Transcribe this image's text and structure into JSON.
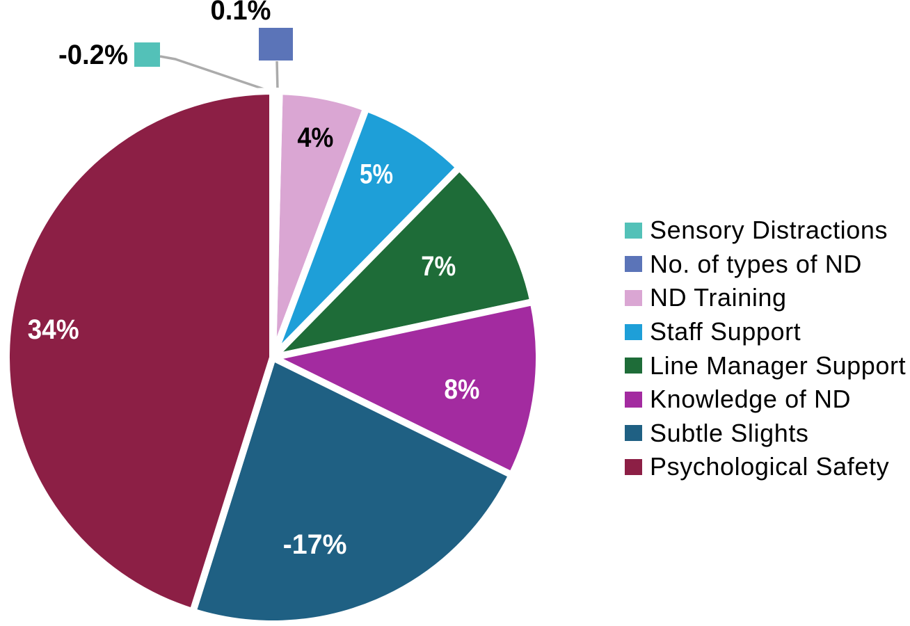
{
  "chart_data": {
    "type": "pie",
    "direction": "clockwise",
    "start_angle_deg": 0,
    "legend_position": "right",
    "background": "#FFFFFF",
    "leader_line_color": "#ABABAB",
    "slices": [
      {
        "label": "Sensory Distractions",
        "value": -0.2,
        "display": "-0.2%",
        "color": "#53C1B8",
        "label_color": "#000000",
        "label_placement": "outside"
      },
      {
        "label": "No. of types of ND",
        "value": 0.1,
        "display": "0.1%",
        "color": "#5B74B8",
        "label_color": "#000000",
        "label_placement": "outside"
      },
      {
        "label": "ND Training",
        "value": 4,
        "display": "4%",
        "color": "#DAA6D3",
        "label_color": "#000000",
        "label_placement": "inside"
      },
      {
        "label": "Staff Support",
        "value": 5,
        "display": "5%",
        "color": "#1E9FD8",
        "label_color": "#FFFFFF",
        "label_placement": "inside"
      },
      {
        "label": "Line Manager Support",
        "value": 7,
        "display": "7%",
        "color": "#1E6C38",
        "label_color": "#FFFFFF",
        "label_placement": "inside"
      },
      {
        "label": "Knowledge of ND",
        "value": 8,
        "display": "8%",
        "color": "#A32BA0",
        "label_color": "#FFFFFF",
        "label_placement": "inside"
      },
      {
        "label": "Subtle Slights",
        "value": -17,
        "display": "-17%",
        "color": "#1F6083",
        "label_color": "#FFFFFF",
        "label_placement": "inside"
      },
      {
        "label": "Psychological Safety",
        "value": 34,
        "display": "34%",
        "color": "#8C1F45",
        "label_color": "#FFFFFF",
        "label_placement": "inside"
      }
    ]
  }
}
